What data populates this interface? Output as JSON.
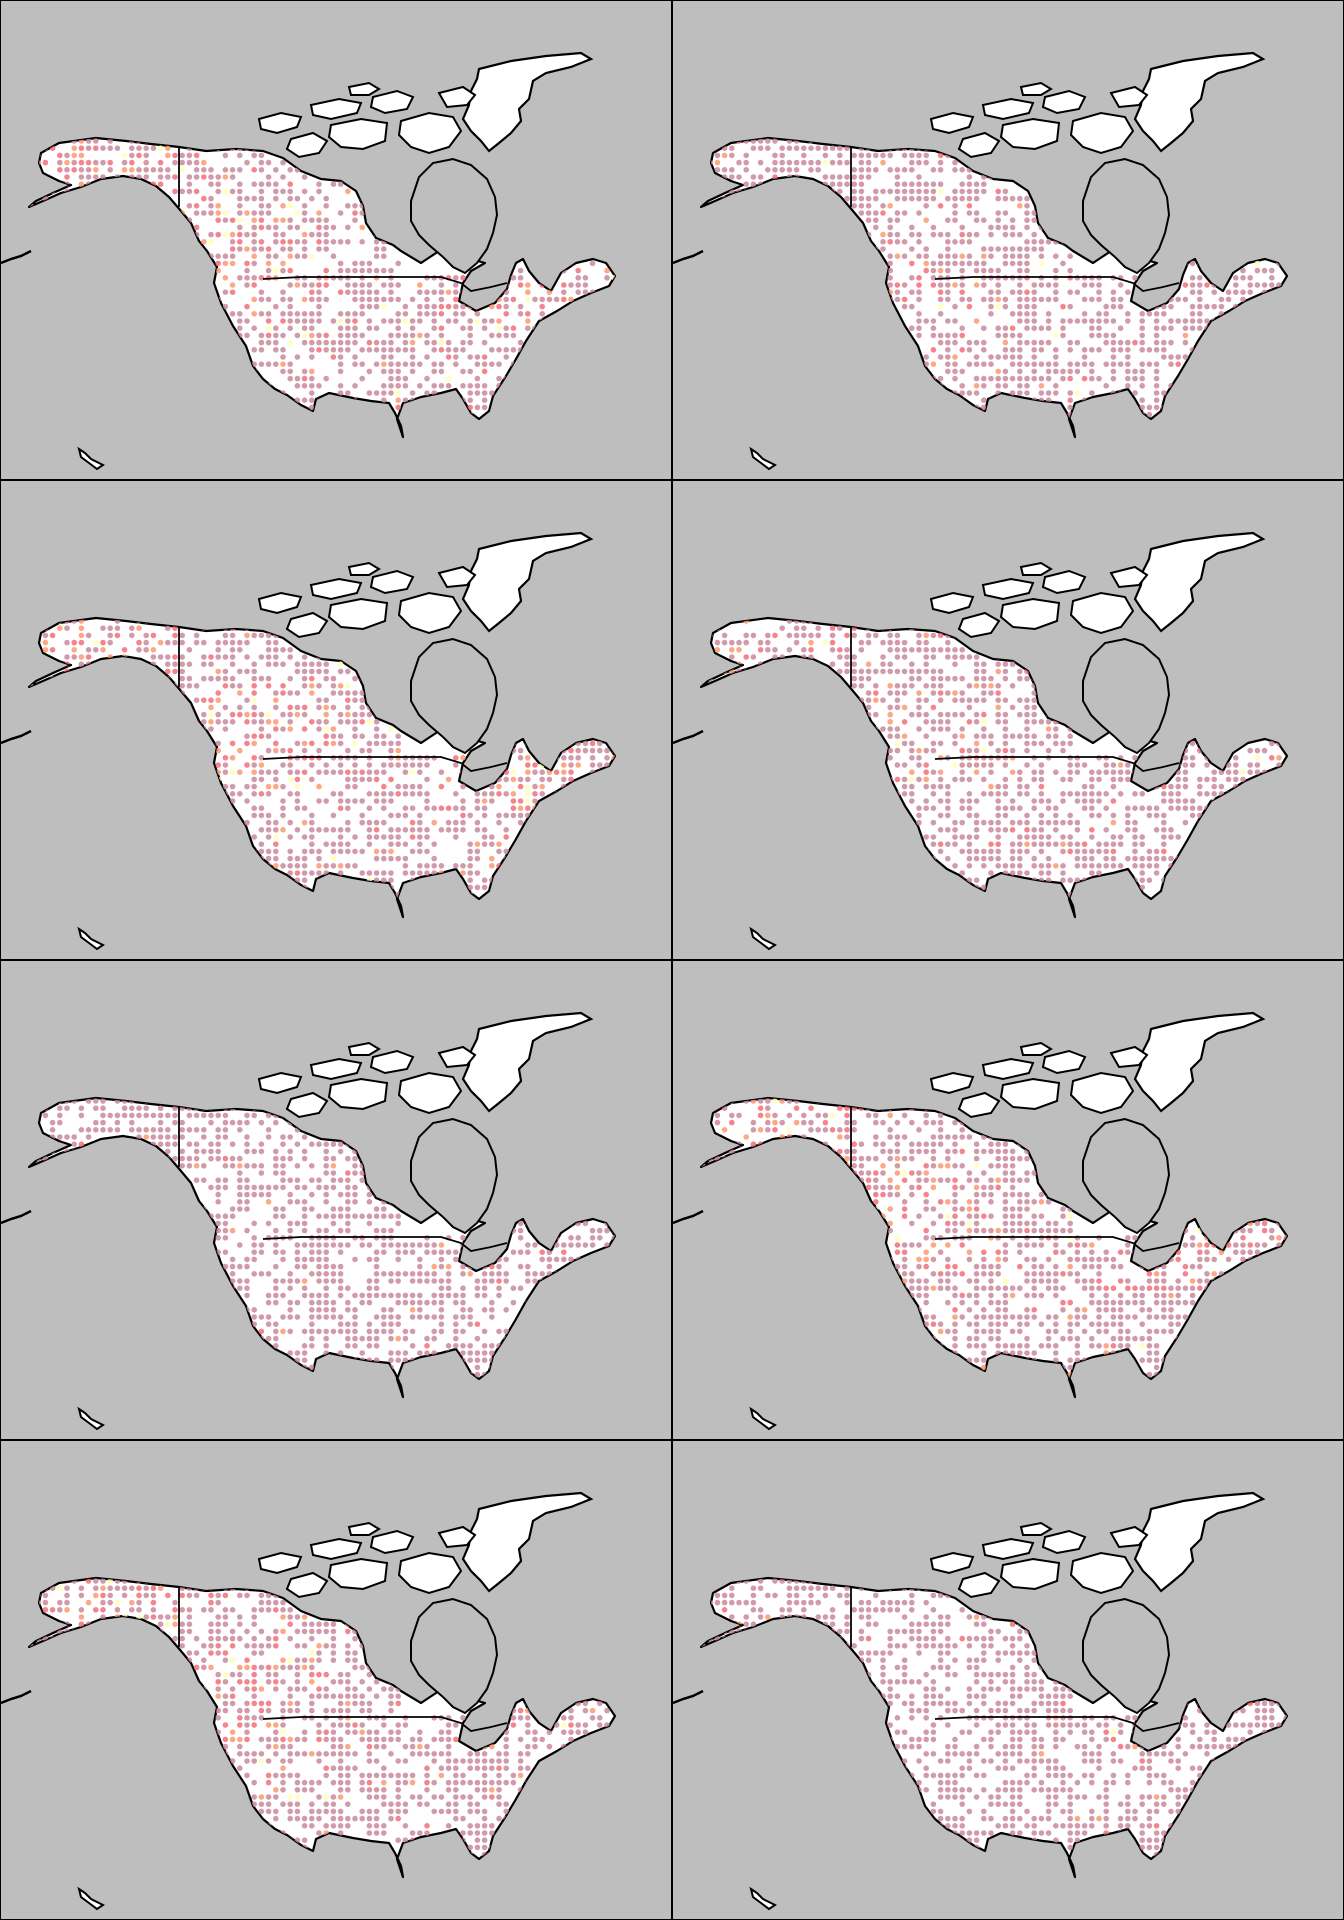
{
  "colors": {
    "ocean": "#bebebe",
    "land": "#ffffff",
    "border": "#000000",
    "dot_low": "#c98a9c",
    "dot_mid": "#f2707a",
    "dot_high": "#fa9a72",
    "dot_peak": "#ffffb4"
  },
  "panels": [
    {
      "id": "panel-1",
      "hot_regions": [
        "pacific-northwest",
        "alaska",
        "great-lakes"
      ],
      "intensity": 0.55
    },
    {
      "id": "panel-2",
      "hot_regions": [
        "pacific-northwest"
      ],
      "intensity": 0.25
    },
    {
      "id": "panel-3",
      "hot_regions": [
        "alaska",
        "pacific-northwest",
        "great-lakes"
      ],
      "intensity": 0.7
    },
    {
      "id": "panel-4",
      "hot_regions": [
        "pacific-northwest",
        "alaska"
      ],
      "intensity": 0.35
    },
    {
      "id": "panel-5",
      "hot_regions": [
        "great-lakes"
      ],
      "intensity": 0.1
    },
    {
      "id": "panel-6",
      "hot_regions": [
        "pacific-northwest",
        "alaska",
        "great-lakes"
      ],
      "intensity": 0.5
    },
    {
      "id": "panel-7",
      "hot_regions": [
        "pacific-northwest",
        "alaska"
      ],
      "intensity": 0.6
    },
    {
      "id": "panel-8",
      "hot_regions": [
        "great-lakes"
      ],
      "intensity": 0.08
    }
  ]
}
